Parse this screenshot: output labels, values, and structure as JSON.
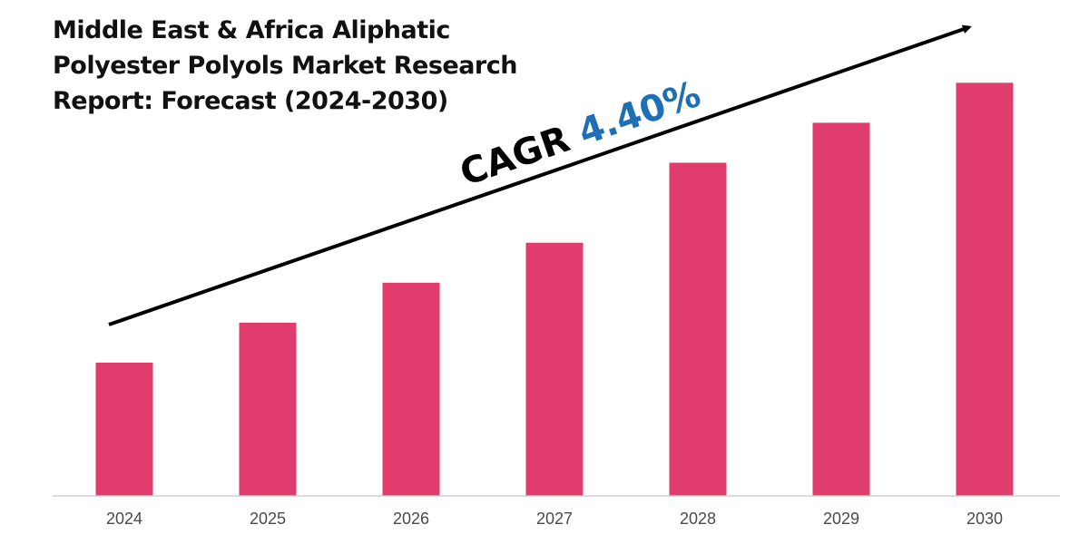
{
  "chart_data": {
    "type": "bar",
    "title_lines": [
      "Middle East & Africa Aliphatic",
      "Polyester Polyols Market Research",
      "Report: Forecast (2024-2030)"
    ],
    "categories": [
      "2024",
      "2025",
      "2026",
      "2027",
      "2028",
      "2029",
      "2030"
    ],
    "values": [
      30,
      39,
      48,
      57,
      75,
      84,
      93
    ],
    "ylim": [
      0,
      100
    ],
    "xlabel": "",
    "ylabel": "",
    "grid": false,
    "bar_color": "#e03c6e",
    "annotation": {
      "label": "CAGR",
      "value": "4.40%",
      "label_color": "#000000",
      "value_color": "#1f6fb5"
    },
    "trend_arrow": true
  }
}
